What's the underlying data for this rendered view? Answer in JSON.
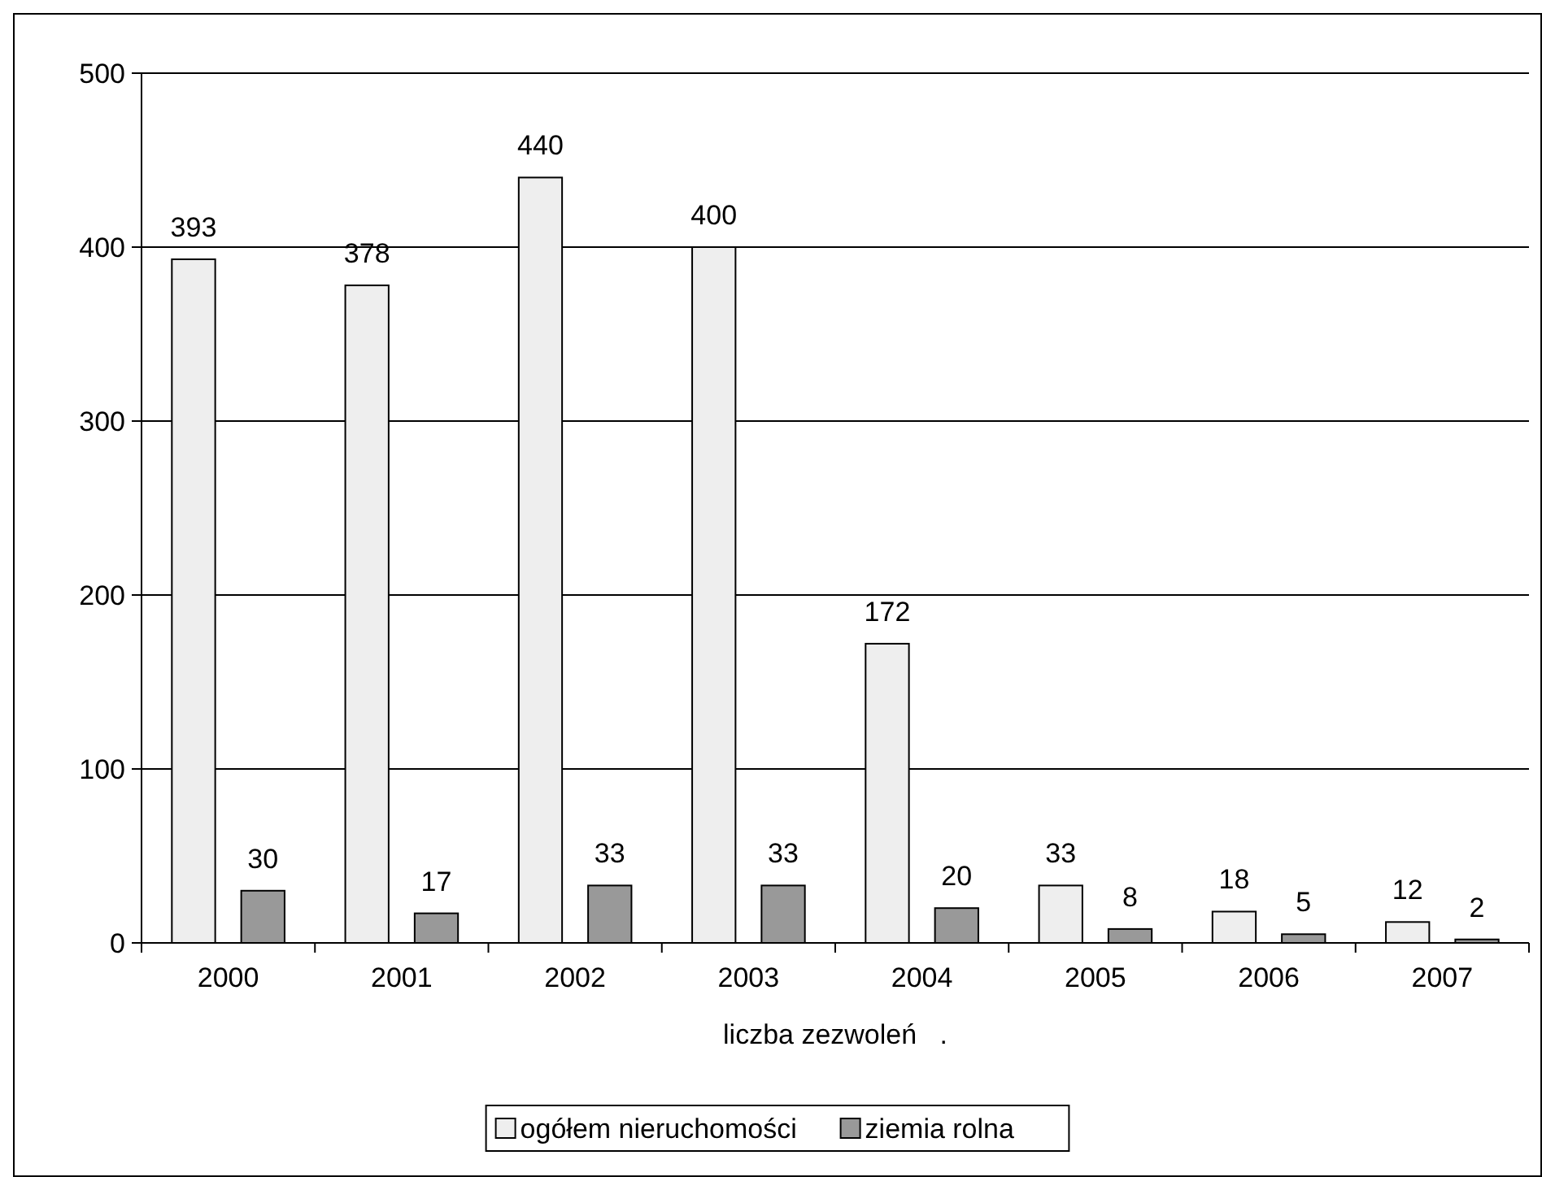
{
  "chart_data": {
    "type": "bar",
    "xlabel": "liczba zezwoleń   .",
    "categories": [
      "2000",
      "2001",
      "2002",
      "2003",
      "2004",
      "2005",
      "2006",
      "2007"
    ],
    "series": [
      {
        "name": "ogółem nieruchomości",
        "color": "#eeeeee",
        "values": [
          393,
          378,
          440,
          400,
          172,
          33,
          18,
          12
        ]
      },
      {
        "name": "ziemia rolna",
        "color": "#999999",
        "values": [
          30,
          17,
          33,
          33,
          20,
          8,
          5,
          2
        ]
      }
    ],
    "ylim": [
      0,
      500
    ],
    "yticks": [
      0,
      100,
      200,
      300,
      400,
      500
    ],
    "grid": "y",
    "legend": "bottom",
    "data_labels": true
  }
}
